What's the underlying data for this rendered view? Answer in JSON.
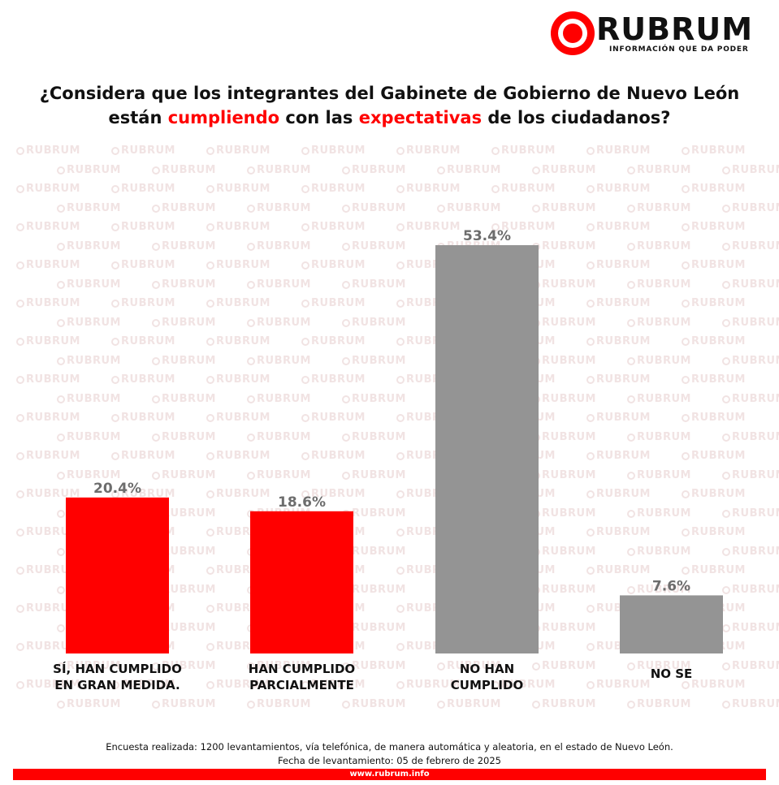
{
  "brand": {
    "name": "RUBRUM",
    "tagline": "INFORMACIÓN QUE DA PODER",
    "watermark_text": "RUBRUM"
  },
  "title": {
    "part1": "¿Considera que los integrantes del Gabinete de Gobierno de Nuevo León están ",
    "highlight1": "cumpliendo",
    "part2": " con las ",
    "highlight2": "expectativas",
    "part3": " de los ciudadanos?"
  },
  "chart_data": {
    "type": "bar",
    "title": "¿Considera que los integrantes del Gabinete de Gobierno de Nuevo León están cumpliendo con las expectativas de los ciudadanos?",
    "categories": [
      [
        "SÍ, HAN CUMPLIDO",
        "EN GRAN MEDIDA."
      ],
      [
        "HAN CUMPLIDO",
        "PARCIALMENTE"
      ],
      [
        "NO HAN",
        "CUMPLIDO"
      ],
      [
        "NO SE"
      ]
    ],
    "values": [
      20.4,
      18.6,
      53.4,
      7.6
    ],
    "value_labels": [
      "20.4%",
      "18.6%",
      "53.4%",
      "7.6%"
    ],
    "colors": [
      "#ff0000",
      "#ff0000",
      "#949494",
      "#949494"
    ],
    "label_color": "#6d6d6d",
    "ylim": [
      0,
      53.4
    ],
    "grid": false,
    "xlabel": "",
    "ylabel": ""
  },
  "footer": {
    "note_line1": "Encuesta realizada: 1200 levantamientos, vía telefónica, de manera automática y aleatoria, en el estado de Nuevo León.",
    "note_line2": "Fecha de levantamiento: 05 de febrero de 2025",
    "url": "www.rubrum.info"
  }
}
